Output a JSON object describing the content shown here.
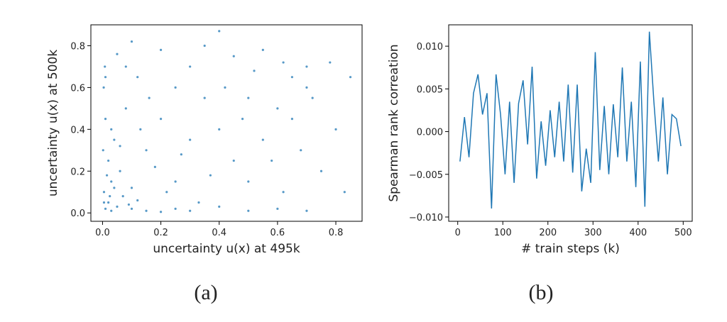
{
  "chart_data": [
    {
      "type": "scatter",
      "caption": "(a)",
      "xlabel": "uncertainty u(x) at 495k",
      "ylabel": "uncertainty u(x) at 500k",
      "color": "#1f77b4",
      "xlim": [
        -0.04,
        0.89
      ],
      "ylim": [
        -0.04,
        0.9
      ],
      "xticks": [
        {
          "value": 0,
          "label": "0.0"
        },
        {
          "value": 0.2,
          "label": "0.2"
        },
        {
          "value": 0.4,
          "label": "0.4"
        },
        {
          "value": 0.6,
          "label": "0.6"
        },
        {
          "value": 0.8,
          "label": "0.8"
        }
      ],
      "yticks": [
        {
          "value": 0,
          "label": "0.0"
        },
        {
          "value": 0.2,
          "label": "0.2"
        },
        {
          "value": 0.4,
          "label": "0.4"
        },
        {
          "value": 0.6,
          "label": "0.6"
        },
        {
          "value": 0.8,
          "label": "0.8"
        }
      ],
      "x": [
        0.01,
        0.005,
        0.02,
        0.03,
        0.002,
        0.01,
        0.004,
        0.008,
        0.05,
        0.1,
        0.15,
        0.2,
        0.25,
        0.3,
        0.4,
        0.5,
        0.6,
        0.7,
        0.06,
        0.04,
        0.08,
        0.12,
        0.02,
        0.03,
        0.1,
        0.15,
        0.2,
        0.25,
        0.3,
        0.35,
        0.4,
        0.45,
        0.5,
        0.55,
        0.6,
        0.65,
        0.7,
        0.68,
        0.62,
        0.72,
        0.78,
        0.8,
        0.83,
        0.85,
        0.75,
        0.45,
        0.35,
        0.2,
        0.1,
        0.05,
        0.55,
        0.4,
        0.25,
        0.18,
        0.07,
        0.09,
        0.12,
        0.03,
        0.015,
        0.005,
        0.025,
        0.04,
        0.3,
        0.5,
        0.58,
        0.22,
        0.33,
        0.42,
        0.48,
        0.65,
        0.16,
        0.27,
        0.37,
        0.01,
        0.06,
        0.13,
        0.08,
        0.52,
        0.7,
        0.62
      ],
      "y": [
        0.02,
        0.1,
        0.05,
        0.01,
        0.3,
        0.45,
        0.6,
        0.7,
        0.03,
        0.02,
        0.01,
        0.005,
        0.02,
        0.01,
        0.03,
        0.01,
        0.02,
        0.01,
        0.2,
        0.35,
        0.5,
        0.65,
        0.25,
        0.15,
        0.12,
        0.3,
        0.45,
        0.6,
        0.7,
        0.55,
        0.4,
        0.25,
        0.15,
        0.35,
        0.5,
        0.65,
        0.7,
        0.3,
        0.1,
        0.55,
        0.72,
        0.4,
        0.1,
        0.65,
        0.2,
        0.75,
        0.8,
        0.78,
        0.82,
        0.76,
        0.78,
        0.87,
        0.15,
        0.22,
        0.08,
        0.04,
        0.06,
        0.4,
        0.18,
        0.05,
        0.08,
        0.12,
        0.35,
        0.55,
        0.25,
        0.1,
        0.05,
        0.6,
        0.45,
        0.45,
        0.55,
        0.28,
        0.18,
        0.65,
        0.32,
        0.4,
        0.7,
        0.68,
        0.6,
        0.72
      ]
    },
    {
      "type": "line",
      "caption": "(b)",
      "xlabel": "# train steps (k)",
      "ylabel": "Spearman rank correation",
      "color": "#1f77b4",
      "xlim": [
        -20,
        520
      ],
      "ylim": [
        -0.0105,
        0.0125
      ],
      "xticks": [
        0,
        100,
        200,
        300,
        400,
        500
      ],
      "yticks": [
        {
          "value": -0.01,
          "label": "−0.010"
        },
        {
          "value": -0.005,
          "label": "−0.005"
        },
        {
          "value": 0,
          "label": "0.000"
        },
        0.005,
        {
          "value": 0.01,
          "label": "0.010"
        }
      ],
      "x": [
        5,
        15,
        25,
        35,
        45,
        55,
        65,
        75,
        85,
        95,
        105,
        115,
        125,
        135,
        145,
        155,
        165,
        175,
        185,
        195,
        205,
        215,
        225,
        235,
        245,
        255,
        265,
        275,
        285,
        295,
        305,
        315,
        325,
        335,
        345,
        355,
        365,
        375,
        385,
        395,
        405,
        415,
        425,
        435,
        445,
        455,
        465,
        475,
        485,
        495
      ],
      "values": [
        -0.0035,
        0.0017,
        -0.003,
        0.0045,
        0.0067,
        0.002,
        0.0045,
        -0.009,
        0.0067,
        0.002,
        -0.005,
        0.0035,
        -0.006,
        0.0033,
        0.006,
        -0.0015,
        0.0076,
        -0.0055,
        0.0012,
        -0.004,
        0.0025,
        -0.003,
        0.0035,
        -0.0035,
        0.0055,
        -0.0048,
        0.0055,
        -0.007,
        -0.002,
        -0.006,
        0.0093,
        -0.0045,
        0.003,
        -0.005,
        0.0032,
        -0.003,
        0.0075,
        -0.0035,
        0.0035,
        -0.0065,
        0.0082,
        -0.0088,
        0.0117,
        0.0035,
        -0.0035,
        0.004,
        -0.005,
        0.002,
        0.0015,
        -0.0017
      ]
    }
  ]
}
